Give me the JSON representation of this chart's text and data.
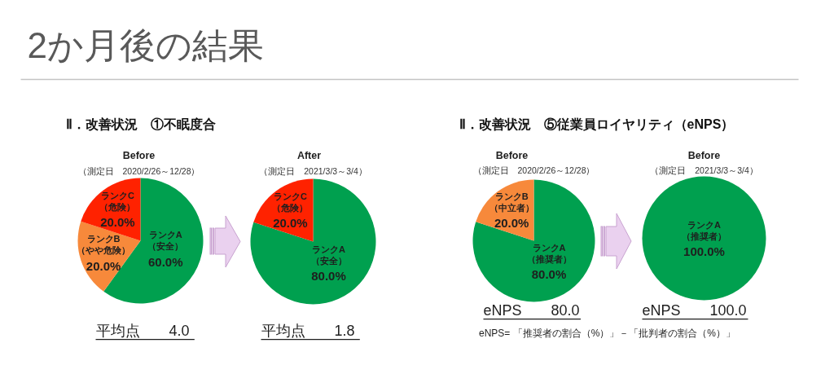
{
  "chart_data": [
    {
      "type": "other",
      "title": "2か月後の結果"
    },
    {
      "type": "other",
      "title": "Ⅱ．改善状況　①不眠度合"
    },
    {
      "type": "pie",
      "title": "Before",
      "subtitle": "（測定日　2020/2/26～12/28）",
      "categories": [
        "ランクA\n（安全）",
        "ランクB\n（やや危険）",
        "ランクC\n（危険）"
      ],
      "values": [
        60,
        20,
        20
      ],
      "colors": [
        "#00a04f",
        "#f7893b",
        "#ff2200"
      ],
      "value_labels": [
        "60.0%",
        "20.0%",
        "20.0%"
      ],
      "annotations": [
        "平均点　　4.0"
      ]
    },
    {
      "type": "pie",
      "title": "After",
      "subtitle": "（測定日　2021/3/3～3/4）",
      "categories": [
        "ランクA\n（安全）",
        "ランクC\n（危険）"
      ],
      "values": [
        80,
        20
      ],
      "colors": [
        "#00a04f",
        "#ff2200"
      ],
      "value_labels": [
        "80.0%",
        "20.0%"
      ],
      "annotations": [
        "平均点　　1.8"
      ]
    },
    {
      "type": "other",
      "title": "Ⅱ．改善状況　⑤従業員ロイヤリティ（eNPS）"
    },
    {
      "type": "pie",
      "title": "Before",
      "subtitle": "（測定日　2020/2/26～12/28）",
      "categories": [
        "ランクA\n（推奨者）",
        "ランクB\n（中立者）"
      ],
      "values": [
        80,
        20
      ],
      "colors": [
        "#00a04f",
        "#f7893b"
      ],
      "value_labels": [
        "80.0%",
        "20.0%"
      ],
      "annotations": [
        "eNPS　　80.0"
      ]
    },
    {
      "type": "pie",
      "title": "Before",
      "subtitle": "（測定日　2021/3/3～3/4）",
      "categories": [
        "ランクA\n（推奨者）"
      ],
      "values": [
        100
      ],
      "colors": [
        "#00a04f"
      ],
      "value_labels": [
        "100.0%"
      ],
      "annotations": [
        "eNPS　　100.0"
      ]
    },
    {
      "type": "other",
      "annotations": [
        "eNPS= 「推奨者の割合（%）」－「批判者の割合（%）」"
      ]
    }
  ]
}
